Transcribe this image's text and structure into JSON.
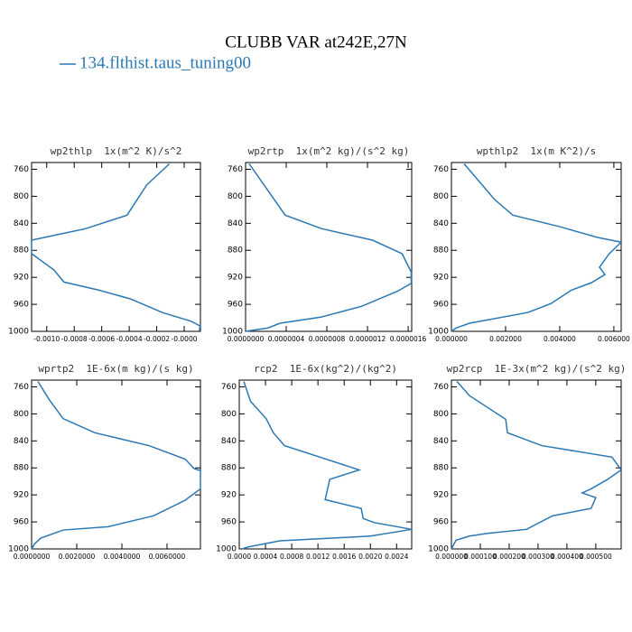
{
  "title": "CLUBB VAR at242E,27N",
  "legend": {
    "name": "134.flthist.taus_tuning00",
    "color": "#2a78b4"
  },
  "chart_data": [
    {
      "type": "line",
      "title": "wp2thlp  1x(m^2 K)/s^2",
      "levels": [
        752,
        783,
        828,
        848,
        865,
        885,
        909,
        927,
        939,
        952,
        972,
        985,
        992,
        1000
      ],
      "values": [
        -0.000108,
        -0.000272,
        -0.000416,
        -0.000718,
        -0.00111,
        -0.00111,
        -0.000948,
        -0.000875,
        -0.00062,
        -0.00039,
        -0.00016,
        5e-05,
        0.000115,
        0.00011
      ],
      "xlim": [
        -0.00111,
        0.000118
      ],
      "xticks": [
        {
          "value": -0.001,
          "label": "-0.0010"
        },
        {
          "value": -0.0008,
          "label": "-0.0008"
        },
        {
          "value": -0.0006,
          "label": "-0.0006"
        },
        {
          "value": -0.0004,
          "label": "-0.0004"
        },
        {
          "value": -0.0002,
          "label": "-0.0002"
        },
        {
          "value": 0,
          "label": "-0.0000"
        }
      ],
      "ylim": [
        1000,
        750
      ],
      "yticks": [
        760,
        800,
        840,
        880,
        920,
        960,
        1000
      ]
    },
    {
      "type": "line",
      "title": "wp2rtp  1x(m^2 kg)/(s^2 kg)",
      "levels": [
        752,
        828,
        848,
        865,
        885,
        912,
        929,
        941,
        963,
        979,
        988,
        995,
        1000
      ],
      "values": [
        3.6e-08,
        3.9e-07,
        7.5e-07,
        1.25e-06,
        1.54e-06,
        1.63e-06,
        1.63e-06,
        1.49e-06,
        1.14e-06,
        7.4e-07,
        3.4e-07,
        2.2e-07,
        0
      ],
      "xlim": [
        0,
        1.635e-06
      ],
      "xticks": [
        {
          "value": 0,
          "label": "0.0000000"
        },
        {
          "value": 4e-07,
          "label": "0.0000004"
        },
        {
          "value": 8e-07,
          "label": "0.0000008"
        },
        {
          "value": 1.2e-06,
          "label": "0.0000012"
        },
        {
          "value": 1.6e-06,
          "label": "0.0000016"
        }
      ],
      "ylim": [
        1000,
        750
      ],
      "yticks": [
        760,
        800,
        840,
        880,
        920,
        960,
        1000
      ]
    },
    {
      "type": "line",
      "title": "wpthlp2  1x(m K^2)/s",
      "levels": [
        752,
        805,
        828,
        845,
        861,
        868,
        885,
        905,
        916,
        928,
        939,
        959,
        972,
        988,
        995,
        1000
      ],
      "values": [
        0.00047,
        0.0016,
        0.00227,
        0.004,
        0.0054,
        0.00627,
        0.00583,
        0.00547,
        0.00567,
        0.00517,
        0.00443,
        0.00367,
        0.00283,
        0.00067,
        0.00017,
        0
      ],
      "xlim": [
        0,
        0.00627
      ],
      "xticks": [
        {
          "value": 0,
          "label": "0.000000"
        },
        {
          "value": 0.002,
          "label": "0.002000"
        },
        {
          "value": 0.004,
          "label": "0.004000"
        },
        {
          "value": 0.006,
          "label": "0.006000"
        }
      ],
      "ylim": [
        1000,
        750
      ],
      "yticks": [
        760,
        800,
        840,
        880,
        920,
        960,
        1000
      ]
    },
    {
      "type": "line",
      "title": "wprtp2  1E-6x(m kg)/(s kg)",
      "levels": [
        752,
        780,
        807,
        828,
        847,
        867,
        881,
        884,
        911,
        928,
        951,
        967,
        972,
        984,
        993,
        1000
      ],
      "values": [
        0.00028,
        0.0008,
        0.0014,
        0.0028,
        0.0052,
        0.0068,
        0.0072,
        0.00748,
        0.00748,
        0.0068,
        0.0054,
        0.0034,
        0.0014,
        0.0004,
        0.00012,
        0
      ],
      "xlim": [
        0,
        0.00748
      ],
      "xticks": [
        {
          "value": 0,
          "label": "0.0000000"
        },
        {
          "value": 0.002,
          "label": "0.0020000"
        },
        {
          "value": 0.004,
          "label": "0.0040000"
        },
        {
          "value": 0.006,
          "label": "0.0060000"
        }
      ],
      "ylim": [
        1000,
        750
      ],
      "yticks": [
        760,
        800,
        840,
        880,
        920,
        960,
        1000
      ]
    },
    {
      "type": "line",
      "title": "rcp2  1E-6x(kg^2)/(kg^2)",
      "levels": [
        752,
        781,
        807,
        828,
        847,
        883,
        897,
        927,
        940,
        955,
        961,
        971,
        981,
        988,
        997,
        1000
      ],
      "values": [
        7e-05,
        0.00017,
        0.00041,
        0.00052,
        0.00069,
        0.00183,
        0.00138,
        0.00131,
        0.00186,
        0.00189,
        0.00206,
        0.00263,
        0.002,
        0.00062,
        0.00014,
        4e-05
      ],
      "xlim": [
        0,
        0.00263
      ],
      "xticks": [
        {
          "value": 0,
          "label": "0.0000"
        },
        {
          "value": 0.0004,
          "label": "0.0004"
        },
        {
          "value": 0.0008,
          "label": "0.0008"
        },
        {
          "value": 0.0012,
          "label": "0.0012"
        },
        {
          "value": 0.0016,
          "label": "0.0016"
        },
        {
          "value": 0.002,
          "label": "0.0020"
        },
        {
          "value": 0.0024,
          "label": "0.0024"
        }
      ],
      "ylim": [
        1000,
        750
      ],
      "yticks": [
        760,
        800,
        840,
        880,
        920,
        960,
        1000
      ]
    },
    {
      "type": "line",
      "title": "wp2rcp  1E-3x(m^2 kg)/(s^2 kg)",
      "levels": [
        752,
        773,
        808,
        828,
        847,
        864,
        883,
        897,
        911,
        917,
        924,
        940,
        951,
        971,
        977,
        981,
        987,
        1000
      ],
      "values": [
        1.9e-05,
        6.25e-05,
        0.000188,
        0.000194,
        0.000313,
        0.000556,
        0.000588,
        0.000541,
        0.000484,
        0.000453,
        0.0005,
        0.000484,
        0.00035,
        0.00026,
        0.000125,
        6.25e-05,
        1.6e-05,
        0
      ],
      "xlim": [
        0,
        0.000588
      ],
      "xticks": [
        {
          "value": 0,
          "label": "0.000000"
        },
        {
          "value": 0.0001,
          "label": "0.000100"
        },
        {
          "value": 0.0002,
          "label": "0.000200"
        },
        {
          "value": 0.0003,
          "label": "0.000300"
        },
        {
          "value": 0.0004,
          "label": "0.000400"
        },
        {
          "value": 0.0005,
          "label": "0.000500"
        }
      ],
      "ylim": [
        1000,
        750
      ],
      "yticks": [
        760,
        800,
        840,
        880,
        920,
        960,
        1000
      ]
    }
  ]
}
